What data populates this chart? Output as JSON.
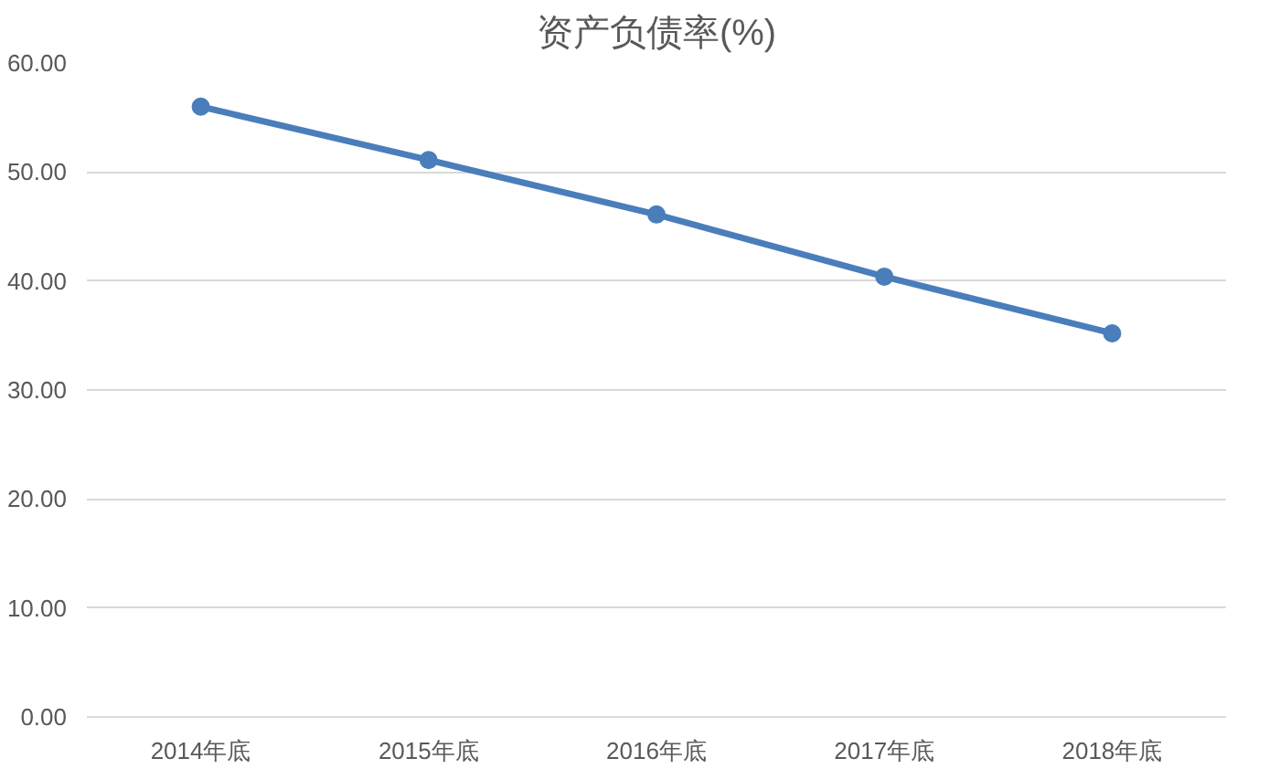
{
  "chart_data": {
    "type": "line",
    "title": "资产负债率(%)",
    "categories": [
      "2014年底",
      "2015年底",
      "2016年底",
      "2017年底",
      "2018年底"
    ],
    "series": [
      {
        "color": "#4a7ebb",
        "values": [
          56.0,
          51.1,
          46.1,
          40.4,
          35.2
        ]
      }
    ],
    "ylim": [
      0,
      60
    ],
    "yticks": [
      {
        "value": 0,
        "label": "0.00"
      },
      {
        "value": 10,
        "label": "10.00"
      },
      {
        "value": 20,
        "label": "20.00"
      },
      {
        "value": 30,
        "label": "30.00"
      },
      {
        "value": 40,
        "label": "40.00"
      },
      {
        "value": 50,
        "label": "50.00"
      },
      {
        "value": 60,
        "label": "60.00"
      }
    ],
    "grid": "y",
    "marker": "circle",
    "line_style": "solid"
  }
}
